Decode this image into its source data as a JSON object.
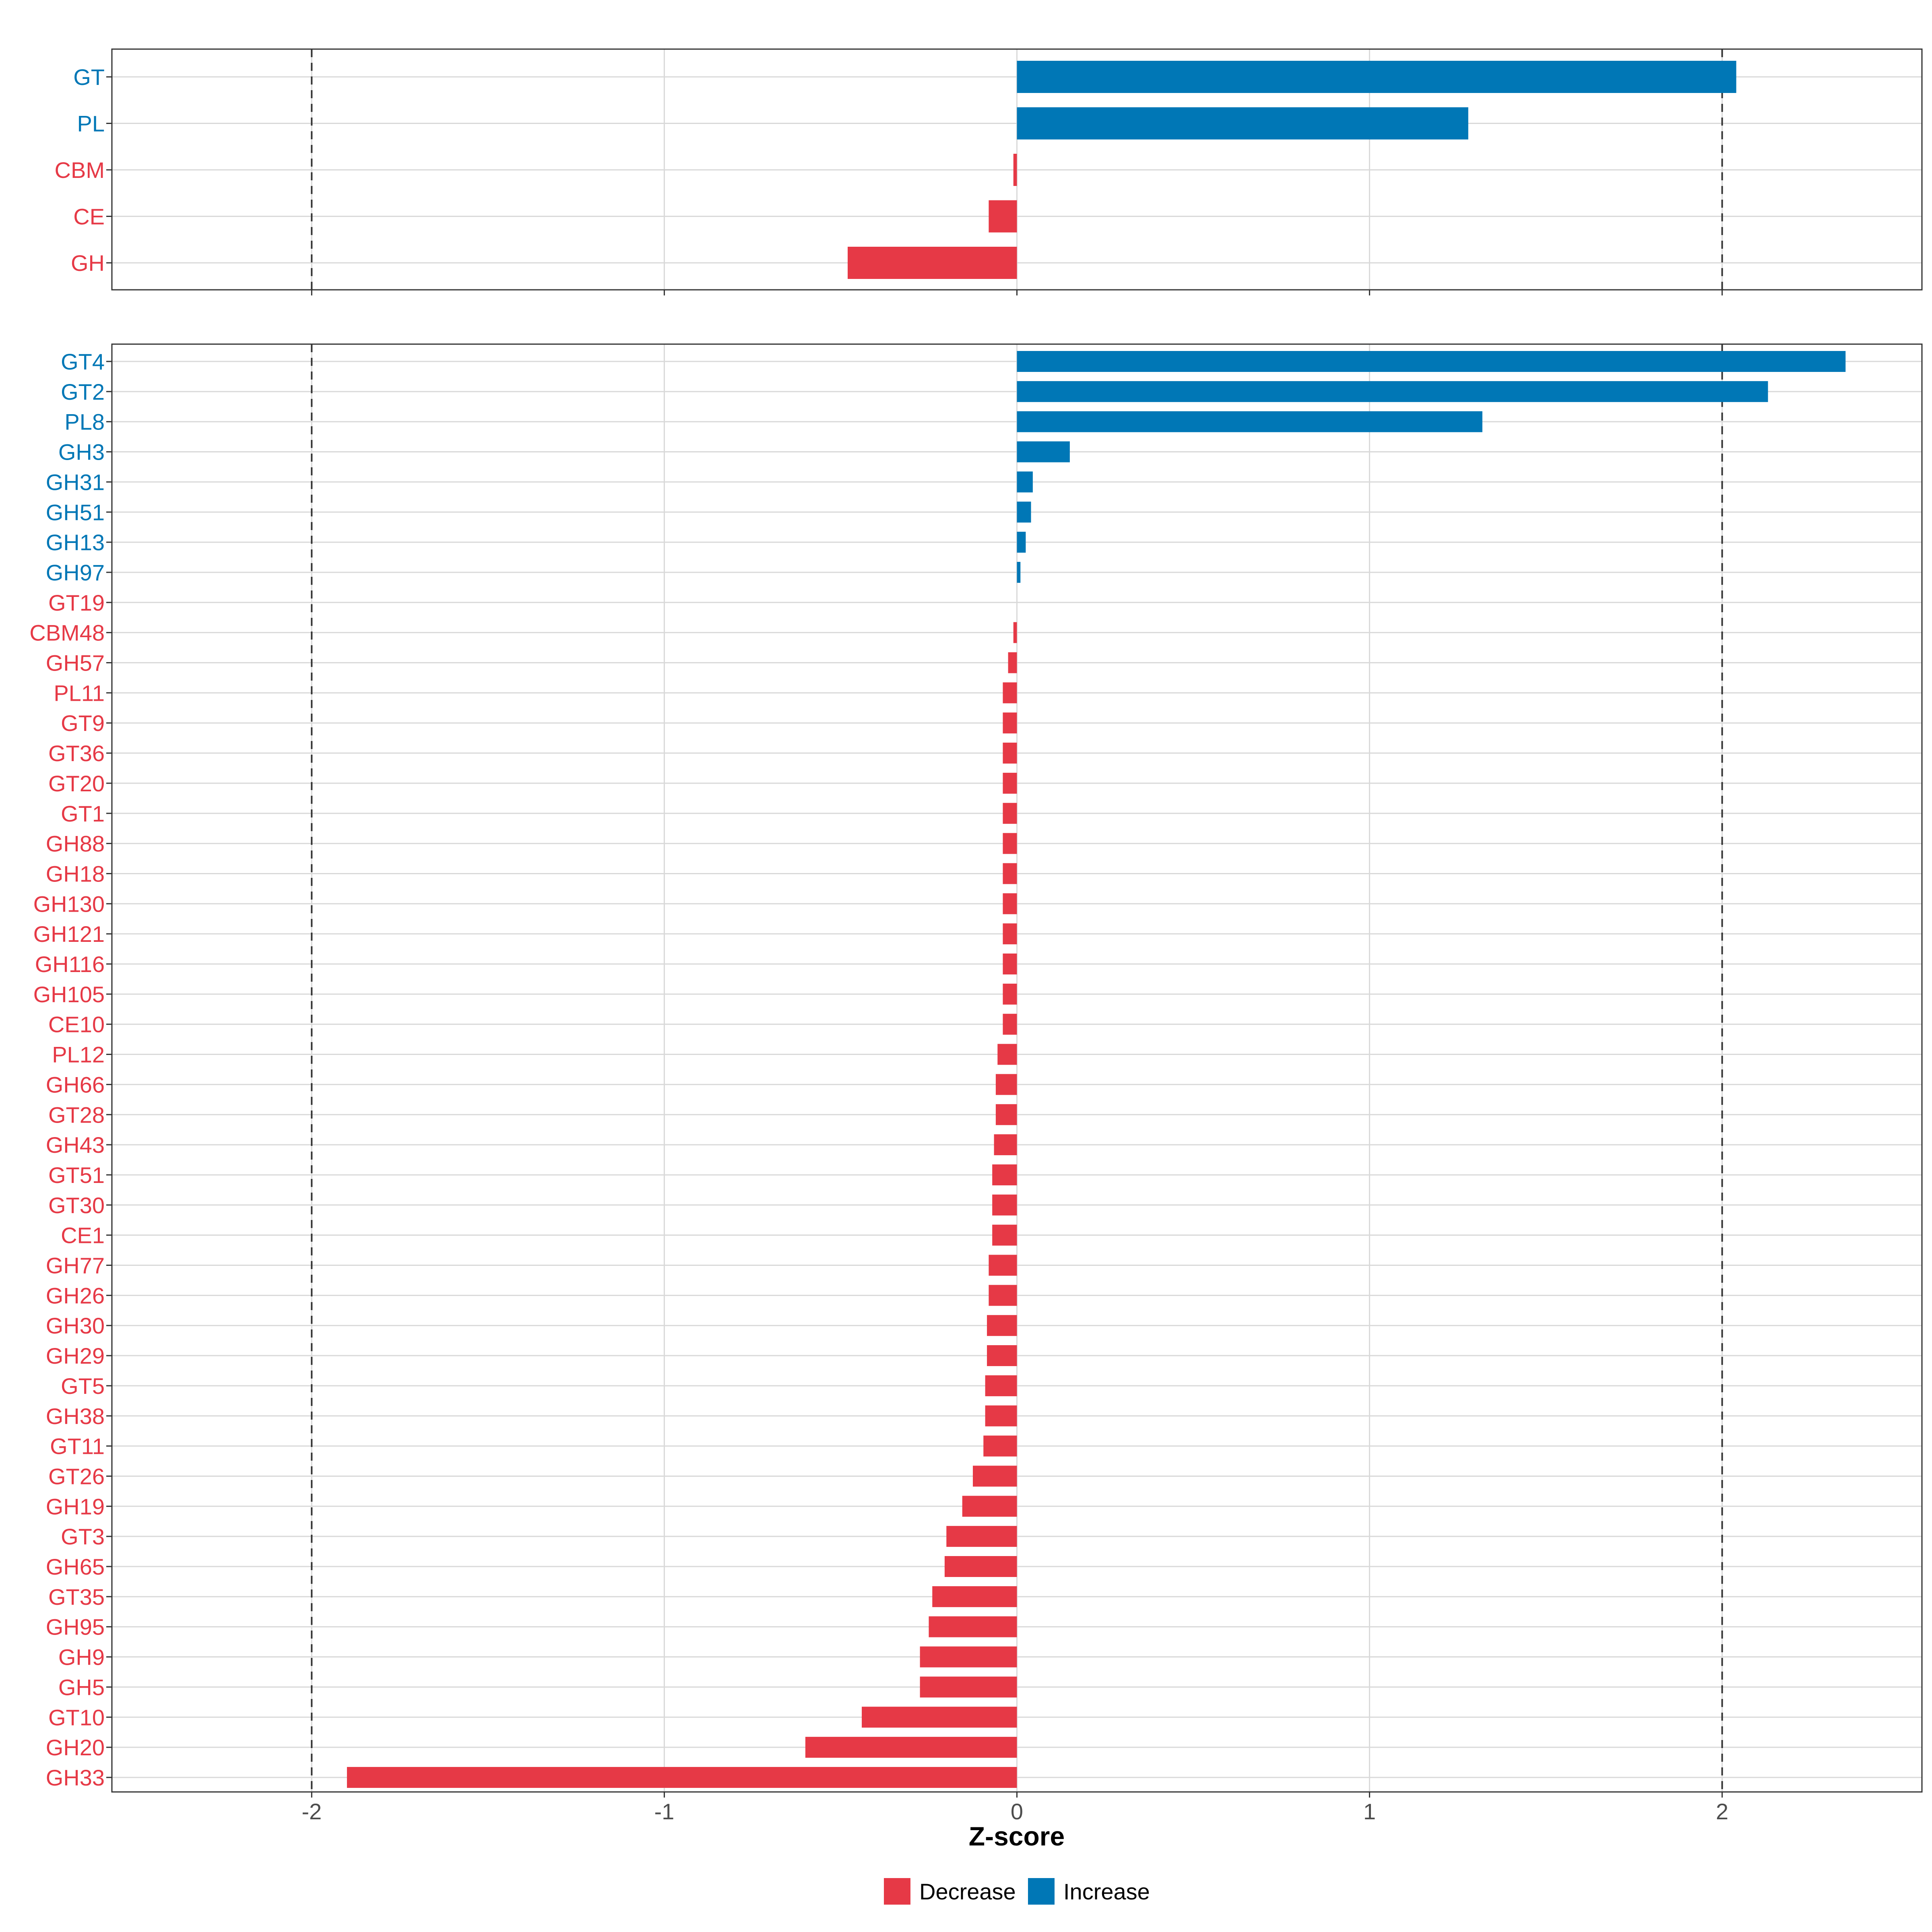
{
  "colors": {
    "decrease": "#E63946",
    "increase": "#0077B6"
  },
  "chart_data": [
    {
      "type": "bar",
      "orientation": "horizontal",
      "xlim": [
        -2.5666,
        2.5666
      ],
      "xticks": [
        -2,
        -1,
        0,
        1,
        2
      ],
      "reference_lines": [
        -2,
        2
      ],
      "categories": [
        "GT",
        "PL",
        "CBM",
        "CE",
        "GH"
      ],
      "values": [
        2.04,
        1.28,
        -0.01,
        -0.08,
        -0.48
      ],
      "direction": [
        "Increase",
        "Increase",
        "Decrease",
        "Decrease",
        "Decrease"
      ]
    },
    {
      "type": "bar",
      "orientation": "horizontal",
      "xlim": [
        -2.5666,
        2.5666
      ],
      "xticks": [
        -2,
        -1,
        0,
        1,
        2
      ],
      "reference_lines": [
        -2,
        2
      ],
      "categories": [
        "GT4",
        "GT2",
        "PL8",
        "GH3",
        "GH31",
        "GH51",
        "GH13",
        "GH97",
        "GT19",
        "CBM48",
        "GH57",
        "PL11",
        "GT9",
        "GT36",
        "GT20",
        "GT1",
        "GH88",
        "GH18",
        "GH130",
        "GH121",
        "GH116",
        "GH105",
        "CE10",
        "PL12",
        "GH66",
        "GT28",
        "GH43",
        "GT51",
        "GT30",
        "CE1",
        "GH77",
        "GH26",
        "GH30",
        "GH29",
        "GT5",
        "GH38",
        "GT11",
        "GT26",
        "GH19",
        "GT3",
        "GH65",
        "GT35",
        "GH95",
        "GH9",
        "GH5",
        "GT10",
        "GH20",
        "GH33"
      ],
      "values": [
        2.35,
        2.13,
        1.32,
        0.15,
        0.045,
        0.04,
        0.025,
        0.01,
        0.0,
        -0.01,
        -0.025,
        -0.04,
        -0.04,
        -0.04,
        -0.04,
        -0.04,
        -0.04,
        -0.04,
        -0.04,
        -0.04,
        -0.04,
        -0.04,
        -0.04,
        -0.055,
        -0.06,
        -0.06,
        -0.065,
        -0.07,
        -0.07,
        -0.07,
        -0.08,
        -0.08,
        -0.085,
        -0.085,
        -0.09,
        -0.09,
        -0.095,
        -0.125,
        -0.155,
        -0.2,
        -0.205,
        -0.24,
        -0.25,
        -0.275,
        -0.275,
        -0.44,
        -0.6,
        -1.9
      ],
      "direction": [
        "Increase",
        "Increase",
        "Increase",
        "Increase",
        "Increase",
        "Increase",
        "Increase",
        "Increase",
        "Decrease",
        "Decrease",
        "Decrease",
        "Decrease",
        "Decrease",
        "Decrease",
        "Decrease",
        "Decrease",
        "Decrease",
        "Decrease",
        "Decrease",
        "Decrease",
        "Decrease",
        "Decrease",
        "Decrease",
        "Decrease",
        "Decrease",
        "Decrease",
        "Decrease",
        "Decrease",
        "Decrease",
        "Decrease",
        "Decrease",
        "Decrease",
        "Decrease",
        "Decrease",
        "Decrease",
        "Decrease",
        "Decrease",
        "Decrease",
        "Decrease",
        "Decrease",
        "Decrease",
        "Decrease",
        "Decrease",
        "Decrease",
        "Decrease",
        "Decrease",
        "Decrease",
        "Decrease"
      ]
    }
  ],
  "xlabel": "Z-score",
  "legend": {
    "position": "bottom",
    "items": [
      {
        "label": "Decrease",
        "color": "#E63946"
      },
      {
        "label": "Increase",
        "color": "#0077B6"
      }
    ]
  }
}
